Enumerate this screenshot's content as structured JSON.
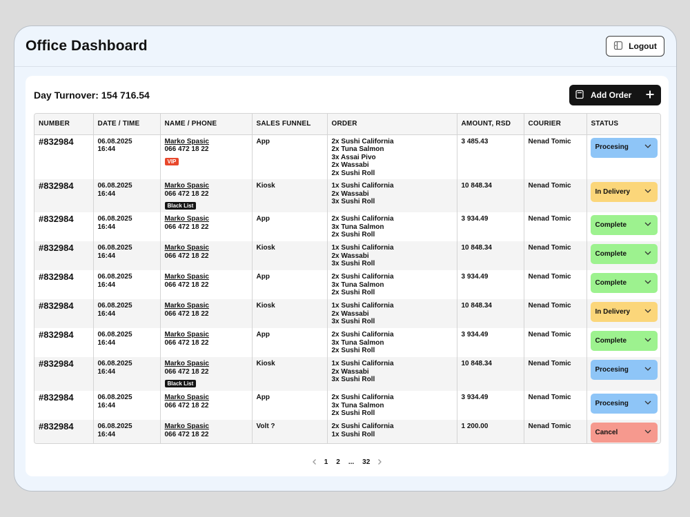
{
  "header": {
    "title": "Office Dashboard",
    "logout_label": "Logout"
  },
  "panel": {
    "turnover_label": "Day Turnover:",
    "turnover_value": "154 716.54",
    "add_order_label": "Add Order"
  },
  "table": {
    "columns": [
      "NUMBER",
      "DATE / TIME",
      "NAME / PHONE",
      "SALES FUNNEL",
      "ORDER",
      "AMOUNT, RSD",
      "COURIER",
      "STATUS"
    ],
    "rows": [
      {
        "number": "#832984",
        "date": "06.08.2025",
        "time": "16:44",
        "name": "Marko Spasic",
        "phone": "066 472 18 22",
        "tag": "VIP",
        "tag_type": "vip",
        "funnel": "App",
        "order": [
          "2x Sushi California",
          "2x Tuna Salmon",
          "3x Assai Pivo",
          "2x Wassabi",
          "2x Sushi Roll"
        ],
        "amount": "3 485.43",
        "courier": "Nenad Tomic",
        "status": "Procesing",
        "status_type": "processing"
      },
      {
        "number": "#832984",
        "date": "06.08.2025",
        "time": "16:44",
        "name": "Marko Spasic",
        "phone": "066 472 18 22",
        "tag": "Black List",
        "tag_type": "black",
        "funnel": "Kiosk",
        "order": [
          "1x Sushi California",
          "2x Wassabi",
          "3x Sushi Roll"
        ],
        "amount": "10 848.34",
        "courier": "Nenad Tomic",
        "status": "In Delivery",
        "status_type": "delivery"
      },
      {
        "number": "#832984",
        "date": "06.08.2025",
        "time": "16:44",
        "name": "Marko Spasic",
        "phone": "066 472 18 22",
        "tag": "",
        "tag_type": "",
        "funnel": "App",
        "order": [
          "2x Sushi California",
          "3x Tuna Salmon",
          "2x Sushi Roll"
        ],
        "amount": "3 934.49",
        "courier": "Nenad Tomic",
        "status": "Complete",
        "status_type": "complete"
      },
      {
        "number": "#832984",
        "date": "06.08.2025",
        "time": "16:44",
        "name": "Marko Spasic",
        "phone": "066 472 18 22",
        "tag": "",
        "tag_type": "",
        "funnel": "Kiosk",
        "order": [
          "1x Sushi California",
          "2x Wassabi",
          "3x Sushi Roll"
        ],
        "amount": "10 848.34",
        "courier": "Nenad Tomic",
        "status": "Complete",
        "status_type": "complete"
      },
      {
        "number": "#832984",
        "date": "06.08.2025",
        "time": "16:44",
        "name": "Marko Spasic",
        "phone": "066 472 18 22",
        "tag": "",
        "tag_type": "",
        "funnel": "App",
        "order": [
          "2x Sushi California",
          "3x Tuna Salmon",
          "2x Sushi Roll"
        ],
        "amount": "3 934.49",
        "courier": "Nenad Tomic",
        "status": "Complete",
        "status_type": "complete"
      },
      {
        "number": "#832984",
        "date": "06.08.2025",
        "time": "16:44",
        "name": "Marko Spasic",
        "phone": "066 472 18 22",
        "tag": "",
        "tag_type": "",
        "funnel": "Kiosk",
        "order": [
          "1x Sushi California",
          "2x Wassabi",
          "3x Sushi Roll"
        ],
        "amount": "10 848.34",
        "courier": "Nenad Tomic",
        "status": "In Delivery",
        "status_type": "delivery"
      },
      {
        "number": "#832984",
        "date": "06.08.2025",
        "time": "16:44",
        "name": "Marko Spasic",
        "phone": "066 472 18 22",
        "tag": "",
        "tag_type": "",
        "funnel": "App",
        "order": [
          "2x Sushi California",
          "3x Tuna Salmon",
          "2x Sushi Roll"
        ],
        "amount": "3 934.49",
        "courier": "Nenad Tomic",
        "status": "Complete",
        "status_type": "complete"
      },
      {
        "number": "#832984",
        "date": "06.08.2025",
        "time": "16:44",
        "name": "Marko Spasic",
        "phone": "066 472 18 22",
        "tag": "Black List",
        "tag_type": "black",
        "funnel": "Kiosk",
        "order": [
          "1x Sushi California",
          "2x Wassabi",
          "3x Sushi Roll"
        ],
        "amount": "10 848.34",
        "courier": "Nenad Tomic",
        "status": "Procesing",
        "status_type": "processing"
      },
      {
        "number": "#832984",
        "date": "06.08.2025",
        "time": "16:44",
        "name": "Marko Spasic",
        "phone": "066 472 18 22",
        "tag": "",
        "tag_type": "",
        "funnel": "App",
        "order": [
          "2x Sushi California",
          "3x Tuna Salmon",
          "2x Sushi Roll"
        ],
        "amount": "3 934.49",
        "courier": "Nenad Tomic",
        "status": "Procesing",
        "status_type": "processing"
      },
      {
        "number": "#832984",
        "date": "06.08.2025",
        "time": "16:44",
        "name": "Marko Spasic",
        "phone": "066 472 18 22",
        "tag": "",
        "tag_type": "",
        "funnel": "Volt ?",
        "order": [
          "2x Sushi California",
          "1x Sushi Roll"
        ],
        "amount": "1 200.00",
        "courier": "Nenad Tomic",
        "status": "Cancel",
        "status_type": "cancel"
      }
    ]
  },
  "pagination": {
    "pages": [
      "1",
      "2",
      "...",
      "32"
    ]
  },
  "icons": {
    "logout": "logout-icon",
    "add_order": "receipt-icon",
    "plus": "plus-icon",
    "chevron": "chevron-down-icon",
    "prev": "chevron-left-icon",
    "next": "chevron-right-icon"
  },
  "colors": {
    "processing": "#8ec5f7",
    "delivery": "#fbd67a",
    "complete": "#9df28f",
    "cancel": "#f6998e",
    "vip": "#e8472b"
  }
}
